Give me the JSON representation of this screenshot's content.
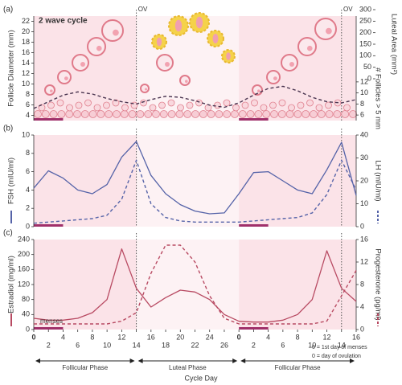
{
  "x_axis": {
    "label": "Cycle Day",
    "xlim": [
      0,
      44
    ],
    "xticks": [
      0,
      2,
      4,
      6,
      8,
      10,
      12,
      14,
      16,
      18,
      20,
      22,
      24,
      26,
      {
        "value": 28,
        "label": "0"
      },
      {
        "value": 30,
        "label": "2"
      },
      {
        "value": 32,
        "label": "4"
      },
      {
        "value": 34,
        "label": "6"
      },
      {
        "value": 36,
        "label": "8"
      },
      {
        "value": 38,
        "label": "10"
      },
      {
        "value": 40,
        "label": "12"
      },
      {
        "value": 42,
        "label": "14"
      },
      {
        "value": 44,
        "label": "16"
      }
    ]
  },
  "phases": [
    {
      "label": "Follicular Phase",
      "x": [
        0,
        14
      ]
    },
    {
      "label": "Luteal Phase",
      "x": [
        14,
        28
      ]
    },
    {
      "label": "Follicular Phase",
      "x": [
        28,
        44
      ]
    }
  ],
  "annotations": [
    {
      "text": "OV",
      "x": 14
    },
    {
      "text": "OV",
      "x": 42
    }
  ],
  "menses": {
    "label": "menses",
    "spans": [
      [
        0,
        4
      ],
      [
        28,
        32
      ]
    ]
  },
  "notes": [
    "0 = 1st day of menses",
    "0 = day of ovulation"
  ],
  "chart_data": [
    {
      "type": "line",
      "panel": "(a)",
      "title": "2 wave cycle",
      "ylabel": "Follicle Diameter (mm)",
      "ylim": [
        3,
        23
      ],
      "yticks": [
        4,
        6,
        8,
        10,
        12,
        14,
        16,
        18,
        20,
        22
      ],
      "y2label": "# Follicles > 5 mm",
      "y2lim": [
        5,
        13
      ],
      "y2ticks": [
        6,
        8,
        10,
        12
      ],
      "y3label": "Luteal Area (mm²)",
      "y3lim": [
        0,
        300
      ],
      "y3ticks": [
        0,
        50,
        100,
        150,
        200,
        250,
        300
      ],
      "x": [
        0,
        2,
        4,
        6,
        8,
        10,
        12,
        14,
        16,
        18,
        20,
        22,
        24,
        26,
        28,
        30,
        32,
        34,
        36,
        38,
        40,
        42,
        44
      ],
      "series": [
        {
          "name": "# Follicles > 5 mm",
          "color": "#4a3550",
          "style": "dashed",
          "axis": "y2",
          "values": [
            7.2,
            8.4,
            9.6,
            10.2,
            9.8,
            9.0,
            8.4,
            8.0,
            8.8,
            9.4,
            9.2,
            8.6,
            7.8,
            7.4,
            8.2,
            9.6,
            10.8,
            11.2,
            10.4,
            9.2,
            8.4,
            8.2,
            8.8
          ]
        }
      ]
    },
    {
      "type": "line",
      "panel": "(b)",
      "ylabel": "FSH (mIU/ml)",
      "ylim": [
        0,
        10
      ],
      "yticks": [
        0,
        2,
        4,
        6,
        8,
        10
      ],
      "y2label": "LH (mIU/ml)",
      "y2lim": [
        0,
        40
      ],
      "y2ticks": [
        0,
        10,
        20,
        30,
        40
      ],
      "x": [
        0,
        2,
        4,
        6,
        8,
        10,
        12,
        14,
        16,
        18,
        20,
        22,
        24,
        26,
        28,
        30,
        32,
        34,
        36,
        38,
        40,
        42,
        44
      ],
      "series": [
        {
          "name": "FSH",
          "color": "#5563a8",
          "style": "solid",
          "values": [
            4.2,
            6.1,
            5.3,
            4.0,
            3.6,
            4.6,
            7.6,
            9.3,
            5.6,
            3.6,
            2.4,
            1.7,
            1.4,
            1.5,
            3.6,
            5.9,
            6.0,
            5.0,
            4.0,
            3.6,
            6.2,
            9.2,
            3.4
          ]
        },
        {
          "name": "LH",
          "color": "#5563a8",
          "style": "dashed",
          "axis": "y2",
          "values": [
            1.5,
            2,
            2.5,
            3,
            3.5,
            5,
            12,
            29,
            10,
            4,
            2.5,
            2,
            2,
            2,
            2,
            2.5,
            3,
            3.5,
            4,
            6,
            14,
            29,
            16
          ]
        }
      ]
    },
    {
      "type": "line",
      "panel": "(c)",
      "ylabel": "Estradiol (mg/ml)",
      "ylim": [
        0,
        240
      ],
      "yticks": [
        0,
        40,
        80,
        120,
        160,
        200,
        240
      ],
      "y2label": "Progesterone (pg/ml)",
      "y2lim": [
        0,
        16
      ],
      "y2ticks": [
        0,
        4,
        8,
        12,
        16
      ],
      "x": [
        0,
        2,
        4,
        6,
        8,
        10,
        12,
        14,
        16,
        18,
        20,
        22,
        24,
        26,
        28,
        30,
        32,
        34,
        36,
        38,
        40,
        42,
        44
      ],
      "series": [
        {
          "name": "Estradiol",
          "color": "#b84a62",
          "style": "solid",
          "values": [
            30,
            25,
            25,
            30,
            45,
            80,
            215,
            110,
            60,
            85,
            105,
            100,
            80,
            40,
            22,
            20,
            20,
            25,
            40,
            80,
            210,
            110,
            75
          ]
        },
        {
          "name": "Progesterone",
          "color": "#b84a62",
          "style": "dashed",
          "axis": "y2",
          "values": [
            1,
            1,
            1,
            1,
            1,
            1,
            1.5,
            3,
            10,
            15,
            15,
            12,
            6,
            2,
            1,
            1,
            1,
            1,
            1,
            1,
            1.5,
            6,
            10.5
          ]
        }
      ]
    }
  ]
}
